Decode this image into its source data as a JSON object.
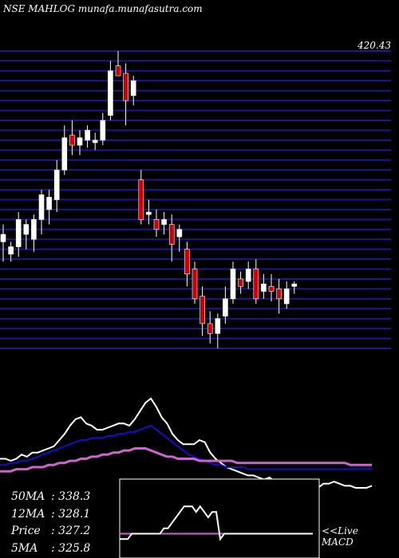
{
  "watermark": "NSE MAHLOG munafa.munafasutra.com",
  "colors": {
    "background": "#000000",
    "grid": "#1a1a8a",
    "bull": "#ffffff",
    "bear": "#cc0000",
    "wick": "#ffffff",
    "ema_fast": "#ffffff",
    "ema_slow": "#1010cc",
    "ma_long": "#cc66cc"
  },
  "ma_labels": [
    {
      "label": "50MA",
      "value": ": 338.3"
    },
    {
      "label": "12MA",
      "value": ": 328.1"
    },
    {
      "label": "Price",
      "value": ": 327.2"
    },
    {
      "label": "5MA",
      "value": ": 325.8"
    }
  ],
  "live_label": [
    "<<Live",
    "MACD"
  ],
  "chart_data": [
    {
      "type": "candlestick",
      "price_axis": {
        "min": 300,
        "max": 420,
        "top_label": "420.43"
      },
      "grid_levels": [
        416,
        412,
        408,
        404,
        400,
        396,
        392,
        388,
        384,
        380,
        376,
        372,
        368,
        364,
        360,
        356,
        352,
        348,
        344,
        340,
        336,
        332,
        328,
        324,
        320,
        316,
        312,
        308,
        304,
        300
      ],
      "candles": [
        {
          "o": 343,
          "h": 350,
          "l": 335,
          "c": 346
        },
        {
          "o": 338,
          "h": 343,
          "l": 335,
          "c": 341
        },
        {
          "o": 341,
          "h": 355,
          "l": 337,
          "c": 352
        },
        {
          "o": 346,
          "h": 352,
          "l": 340,
          "c": 350
        },
        {
          "o": 344,
          "h": 354,
          "l": 339,
          "c": 352
        },
        {
          "o": 352,
          "h": 364,
          "l": 346,
          "c": 362
        },
        {
          "o": 356,
          "h": 364,
          "l": 350,
          "c": 361
        },
        {
          "o": 360,
          "h": 376,
          "l": 355,
          "c": 372
        },
        {
          "o": 372,
          "h": 390,
          "l": 370,
          "c": 385
        },
        {
          "o": 386,
          "h": 392,
          "l": 378,
          "c": 382
        },
        {
          "o": 382,
          "h": 388,
          "l": 378,
          "c": 385
        },
        {
          "o": 384,
          "h": 390,
          "l": 381,
          "c": 388
        },
        {
          "o": 383,
          "h": 387,
          "l": 380,
          "c": 384
        },
        {
          "o": 384,
          "h": 395,
          "l": 382,
          "c": 392
        },
        {
          "o": 394,
          "h": 416,
          "l": 392,
          "c": 412
        },
        {
          "o": 414,
          "h": 420,
          "l": 410,
          "c": 410
        },
        {
          "o": 411,
          "h": 415,
          "l": 390,
          "c": 400
        },
        {
          "o": 402,
          "h": 410,
          "l": 398,
          "c": 408
        },
        {
          "o": 368,
          "h": 372,
          "l": 350,
          "c": 352
        },
        {
          "o": 354,
          "h": 360,
          "l": 350,
          "c": 355
        },
        {
          "o": 352,
          "h": 356,
          "l": 345,
          "c": 348
        },
        {
          "o": 350,
          "h": 355,
          "l": 346,
          "c": 352
        },
        {
          "o": 350,
          "h": 354,
          "l": 335,
          "c": 342
        },
        {
          "o": 345,
          "h": 350,
          "l": 339,
          "c": 348
        },
        {
          "o": 340,
          "h": 343,
          "l": 325,
          "c": 330
        },
        {
          "o": 332,
          "h": 335,
          "l": 318,
          "c": 320
        },
        {
          "o": 321,
          "h": 325,
          "l": 305,
          "c": 310
        },
        {
          "o": 310,
          "h": 315,
          "l": 302,
          "c": 306
        },
        {
          "o": 306,
          "h": 314,
          "l": 300,
          "c": 312
        },
        {
          "o": 313,
          "h": 325,
          "l": 310,
          "c": 320
        },
        {
          "o": 320,
          "h": 335,
          "l": 318,
          "c": 332
        },
        {
          "o": 328,
          "h": 331,
          "l": 322,
          "c": 325
        },
        {
          "o": 327,
          "h": 335,
          "l": 324,
          "c": 332
        },
        {
          "o": 332,
          "h": 336,
          "l": 318,
          "c": 320
        },
        {
          "o": 323,
          "h": 330,
          "l": 320,
          "c": 326
        },
        {
          "o": 325,
          "h": 330,
          "l": 319,
          "c": 323
        },
        {
          "o": 324,
          "h": 328,
          "l": 314,
          "c": 320
        },
        {
          "o": 318,
          "h": 327,
          "l": 316,
          "c": 324
        },
        {
          "o": 325,
          "h": 327,
          "l": 322,
          "c": 326
        }
      ]
    },
    {
      "type": "line",
      "panel": "moving averages",
      "series": [
        {
          "key": "ema_fast",
          "values": [
            1,
            1,
            0,
            1,
            3,
            2,
            4,
            4,
            5,
            6,
            7,
            10,
            13,
            17,
            20,
            21,
            18,
            17,
            15,
            15,
            16,
            17,
            18,
            18,
            17,
            20,
            24,
            28,
            30,
            26,
            21,
            18,
            13,
            10,
            8,
            8,
            8,
            10,
            9,
            4,
            1,
            -1,
            -3,
            -4,
            -5,
            -6,
            -7,
            -7,
            -8,
            -9,
            -8,
            -10,
            -11,
            -12,
            -13,
            -12,
            -11,
            -11,
            -12,
            -13,
            -11,
            -11,
            -10,
            -11,
            -12,
            -12,
            -13,
            -13,
            -13,
            -12
          ]
        },
        {
          "key": "ema_slow",
          "values": [
            -2,
            -2,
            -1,
            -1,
            0,
            0,
            1,
            2,
            3,
            4,
            5,
            6,
            7,
            8,
            9,
            10,
            10,
            11,
            11,
            11,
            12,
            12,
            13,
            13,
            14,
            14,
            15,
            16,
            17,
            15,
            13,
            11,
            9,
            7,
            5,
            3,
            2,
            1,
            0,
            -1,
            -2,
            -2,
            -3,
            -3,
            -3,
            -3,
            -4,
            -4,
            -4,
            -4,
            -4,
            -4,
            -4,
            -4,
            -4,
            -4,
            -4,
            -4,
            -4,
            -4,
            -4,
            -4,
            -4,
            -4,
            -4,
            -4,
            -4,
            -4,
            -4,
            -4
          ]
        },
        {
          "key": "ma_long",
          "values": [
            -5,
            -5,
            -5,
            -4,
            -4,
            -4,
            -3,
            -3,
            -3,
            -2,
            -2,
            -1,
            -1,
            0,
            0,
            1,
            1,
            2,
            2,
            3,
            3,
            4,
            4,
            5,
            5,
            6,
            6,
            6,
            5,
            4,
            3,
            2,
            2,
            1,
            1,
            1,
            1,
            0,
            0,
            0,
            0,
            0,
            0,
            0,
            -1,
            -1,
            -1,
            -1,
            -1,
            -1,
            -1,
            -1,
            -1,
            -1,
            -1,
            -1,
            -1,
            -1,
            -1,
            -1,
            -1,
            -1,
            -1,
            -1,
            -1,
            -2,
            -2,
            -2,
            -2,
            -2
          ]
        }
      ]
    },
    {
      "type": "line",
      "panel": "MACD",
      "series": [
        {
          "key": "macd_line",
          "values": [
            0,
            0,
            0,
            1,
            1,
            1,
            1,
            1,
            1,
            1,
            1,
            2,
            2,
            3,
            4,
            5,
            6,
            6,
            6,
            5,
            6,
            5,
            4,
            5,
            5,
            0,
            1,
            1,
            1,
            1,
            1,
            1,
            1,
            1,
            1,
            1,
            1,
            1,
            1,
            1,
            1,
            1,
            1,
            1,
            1,
            1,
            1,
            1,
            1
          ]
        },
        {
          "key": "signal_line",
          "values": [
            1,
            1,
            1,
            1,
            1,
            1,
            1,
            1,
            1,
            1,
            1,
            1,
            1,
            1,
            1,
            1,
            1,
            1,
            1,
            1,
            1,
            1,
            1,
            1,
            1,
            1,
            1,
            1,
            1,
            1,
            1,
            1,
            1,
            1,
            1,
            1,
            1,
            1,
            1,
            1,
            1,
            1,
            1,
            1,
            1,
            1,
            1,
            1,
            1
          ]
        }
      ]
    }
  ]
}
